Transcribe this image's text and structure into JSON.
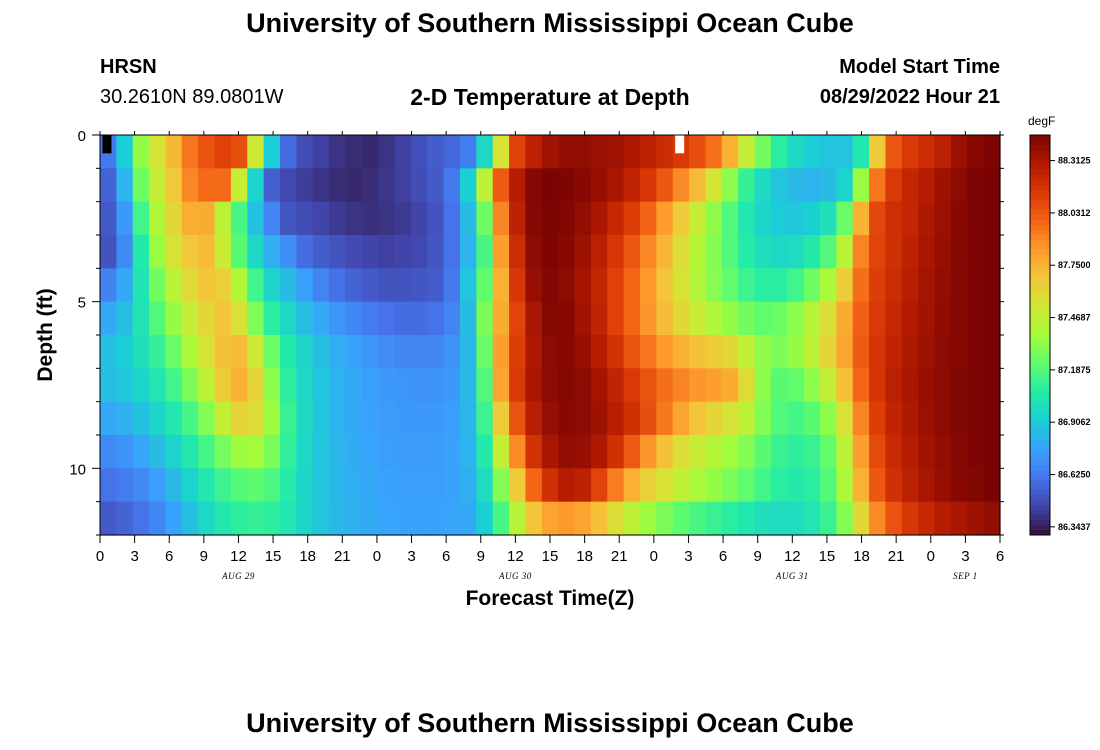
{
  "header": {
    "title": "University of Southern Mississippi Ocean Cube",
    "station_name": "HRSN",
    "station_coords": "30.2610N  89.0801W",
    "chart_subtitle": "2-D Temperature at Depth",
    "model_start_label": "Model Start Time",
    "model_start_value": "08/29/2022 Hour 21"
  },
  "footer": {
    "title_repeat": "University of Southern Mississippi Ocean Cube"
  },
  "colors": {
    "palette": [
      "#30123b",
      "#4145ab",
      "#4675ed",
      "#39a2fc",
      "#1bcfd4",
      "#24eca6",
      "#61fc6c",
      "#a4fc3b",
      "#d1e834",
      "#f3c63a",
      "#fe9b2d",
      "#f36315",
      "#d93806",
      "#b11901",
      "#7a0403"
    ],
    "missing": "#ffffff"
  },
  "chart_data": {
    "type": "heatmap",
    "title": "2-D Temperature at Depth",
    "xlabel": "Forecast Time(Z)",
    "ylabel": "Depth (ft)",
    "x_hours_start": 0,
    "x_hours_end": 78,
    "x_tick_step_hours": 3,
    "x_tick_labels": [
      "0",
      "3",
      "6",
      "9",
      "12",
      "15",
      "18",
      "21",
      "0",
      "3",
      "6",
      "9",
      "12",
      "15",
      "18",
      "21",
      "0",
      "3",
      "6",
      "9",
      "12",
      "15",
      "18",
      "21",
      "0",
      "3",
      "6"
    ],
    "date_labels": [
      {
        "label": "AUG 29",
        "hour": 12
      },
      {
        "label": "AUG 30",
        "hour": 36
      },
      {
        "label": "AUG 31",
        "hour": 60
      },
      {
        "label": "SEP 1",
        "hour": 75
      }
    ],
    "ylim": [
      0,
      12
    ],
    "y_major_ticks": [
      0,
      5,
      10
    ],
    "y_minor_step": 1,
    "depth_levels": [
      0.5,
      1.5,
      2.5,
      3.5,
      4.5,
      5.5,
      6.5,
      7.5,
      8.5,
      9.5,
      10.5,
      11.5
    ],
    "colorbar": {
      "units": "degF",
      "min": 86.3,
      "max": 88.45,
      "tick_values": [
        86.34375,
        86.625,
        86.90625,
        87.1875,
        87.46875,
        87.75,
        88.03125,
        88.3125
      ],
      "tick_labels": [
        "86.3437",
        "86.6250",
        "86.9062",
        "87.1875",
        "87.4687",
        "87.7500",
        "88.0312",
        "88.3125"
      ]
    },
    "series": [
      {
        "name": "0 ft",
        "values": [
          86.62,
          86.91,
          87.34,
          87.55,
          87.73,
          87.94,
          88.05,
          88.11,
          88.06,
          87.52,
          86.91,
          86.58,
          86.48,
          86.44,
          86.4,
          86.38,
          86.37,
          86.4,
          86.44,
          86.49,
          86.53,
          86.57,
          86.64,
          86.96,
          87.55,
          88.11,
          88.25,
          88.34,
          88.38,
          88.38,
          88.36,
          88.34,
          88.3,
          88.25,
          88.2,
          88.14,
          88.06,
          87.95,
          87.76,
          87.49,
          87.26,
          87.08,
          86.97,
          86.91,
          86.88,
          86.88,
          87.04,
          87.66,
          88.03,
          88.14,
          88.2,
          88.26,
          88.36,
          88.41,
          88.44
        ]
      },
      {
        "name": "1 ft",
        "values": [
          86.55,
          86.82,
          87.25,
          87.49,
          87.67,
          87.89,
          87.97,
          87.97,
          87.5,
          86.94,
          86.54,
          86.47,
          86.43,
          86.4,
          86.38,
          86.37,
          86.38,
          86.41,
          86.44,
          86.48,
          86.52,
          86.62,
          86.92,
          87.46,
          88.02,
          88.28,
          88.42,
          88.45,
          88.44,
          88.41,
          88.37,
          88.32,
          88.24,
          88.15,
          88.03,
          87.88,
          87.72,
          87.54,
          87.32,
          87.11,
          86.97,
          86.88,
          86.84,
          86.82,
          86.85,
          86.94,
          87.35,
          87.94,
          88.14,
          88.23,
          88.28,
          88.35,
          88.4,
          88.44,
          88.45
        ]
      },
      {
        "name": "2 ft",
        "values": [
          86.52,
          86.73,
          87.14,
          87.41,
          87.61,
          87.77,
          87.78,
          87.46,
          87.16,
          86.87,
          86.66,
          86.51,
          86.48,
          86.45,
          86.42,
          86.4,
          86.39,
          86.4,
          86.42,
          86.45,
          86.5,
          86.6,
          86.85,
          87.25,
          87.9,
          88.25,
          88.42,
          88.44,
          88.43,
          88.38,
          88.31,
          88.22,
          88.12,
          87.99,
          87.83,
          87.66,
          87.49,
          87.33,
          87.18,
          87.04,
          86.95,
          86.9,
          86.89,
          86.92,
          87.0,
          87.24,
          87.75,
          88.09,
          88.19,
          88.23,
          88.3,
          88.36,
          88.41,
          88.44,
          88.45
        ]
      },
      {
        "name": "3 ft",
        "values": [
          86.5,
          86.68,
          87.05,
          87.35,
          87.55,
          87.67,
          87.72,
          87.5,
          87.2,
          86.96,
          86.8,
          86.7,
          86.58,
          86.53,
          86.5,
          86.47,
          86.45,
          86.44,
          86.45,
          86.47,
          86.51,
          86.6,
          86.82,
          87.16,
          87.82,
          88.2,
          88.4,
          88.44,
          88.41,
          88.35,
          88.26,
          88.15,
          88.03,
          87.89,
          87.74,
          87.58,
          87.43,
          87.3,
          87.18,
          87.06,
          86.99,
          86.96,
          86.98,
          87.05,
          87.18,
          87.45,
          87.9,
          88.1,
          88.18,
          88.25,
          88.32,
          88.37,
          88.42,
          88.44,
          88.45
        ]
      },
      {
        "name": "4 ft",
        "values": [
          86.65,
          86.78,
          87.02,
          87.26,
          87.45,
          87.59,
          87.68,
          87.64,
          87.42,
          87.14,
          86.95,
          86.85,
          86.75,
          86.66,
          86.59,
          86.55,
          86.52,
          86.5,
          86.5,
          86.51,
          86.53,
          86.62,
          86.88,
          87.22,
          87.76,
          88.15,
          88.37,
          88.43,
          88.4,
          88.33,
          88.23,
          88.11,
          87.98,
          87.84,
          87.69,
          87.55,
          87.42,
          87.31,
          87.22,
          87.13,
          87.08,
          87.08,
          87.14,
          87.25,
          87.4,
          87.65,
          87.96,
          88.12,
          88.2,
          88.27,
          88.33,
          88.38,
          88.42,
          88.44,
          88.45
        ]
      },
      {
        "name": "5 ft",
        "values": [
          86.78,
          86.86,
          87.02,
          87.18,
          87.34,
          87.49,
          87.61,
          87.68,
          87.56,
          87.29,
          87.08,
          86.96,
          86.86,
          86.78,
          86.72,
          86.67,
          86.63,
          86.6,
          86.58,
          86.58,
          86.6,
          86.66,
          86.85,
          87.28,
          87.78,
          88.1,
          88.32,
          88.42,
          88.41,
          88.34,
          88.24,
          88.11,
          87.98,
          87.85,
          87.72,
          87.6,
          87.5,
          87.42,
          87.34,
          87.26,
          87.22,
          87.24,
          87.32,
          87.44,
          87.58,
          87.78,
          88.0,
          88.14,
          88.22,
          88.29,
          88.34,
          88.39,
          88.42,
          88.44,
          88.45
        ]
      },
      {
        "name": "6 ft",
        "values": [
          86.87,
          86.91,
          87.0,
          87.11,
          87.24,
          87.39,
          87.55,
          87.7,
          87.72,
          87.52,
          87.24,
          87.05,
          86.94,
          86.86,
          86.8,
          86.76,
          86.72,
          86.69,
          86.67,
          86.66,
          86.67,
          86.71,
          86.84,
          87.24,
          87.82,
          88.12,
          88.3,
          88.4,
          88.41,
          88.37,
          88.28,
          88.17,
          88.05,
          87.94,
          87.84,
          87.76,
          87.7,
          87.65,
          87.6,
          87.47,
          87.33,
          87.28,
          87.34,
          87.46,
          87.62,
          87.8,
          88.02,
          88.16,
          88.24,
          88.3,
          88.35,
          88.4,
          88.42,
          88.44,
          88.45
        ]
      },
      {
        "name": "7 ft",
        "values": [
          86.86,
          86.89,
          86.95,
          87.03,
          87.14,
          87.28,
          87.46,
          87.65,
          87.76,
          87.62,
          87.32,
          87.09,
          86.96,
          86.88,
          86.82,
          86.78,
          86.75,
          86.73,
          86.72,
          86.71,
          86.71,
          86.73,
          86.84,
          87.18,
          87.8,
          88.14,
          88.32,
          88.4,
          88.42,
          88.4,
          88.33,
          88.24,
          88.14,
          88.05,
          87.96,
          87.9,
          87.85,
          87.82,
          87.78,
          87.59,
          87.32,
          87.2,
          87.22,
          87.32,
          87.48,
          87.7,
          87.98,
          88.16,
          88.26,
          88.32,
          88.37,
          88.4,
          88.43,
          88.44,
          88.45
        ]
      },
      {
        "name": "8 ft",
        "values": [
          86.78,
          86.81,
          86.87,
          86.95,
          87.04,
          87.15,
          87.3,
          87.48,
          87.62,
          87.58,
          87.36,
          87.12,
          86.97,
          86.88,
          86.82,
          86.78,
          86.76,
          86.74,
          86.73,
          86.73,
          86.73,
          86.75,
          86.83,
          87.13,
          87.66,
          88.05,
          88.27,
          88.37,
          88.41,
          88.4,
          88.35,
          88.27,
          88.18,
          88.06,
          87.93,
          87.8,
          87.69,
          87.62,
          87.56,
          87.46,
          87.3,
          87.18,
          87.15,
          87.2,
          87.32,
          87.56,
          87.9,
          88.12,
          88.24,
          88.3,
          88.36,
          88.4,
          88.43,
          88.44,
          88.45
        ]
      },
      {
        "name": "9 ft",
        "values": [
          86.68,
          86.71,
          86.77,
          86.85,
          86.94,
          87.04,
          87.15,
          87.27,
          87.36,
          87.38,
          87.28,
          87.1,
          86.96,
          86.88,
          86.83,
          86.79,
          86.77,
          86.75,
          86.74,
          86.74,
          86.74,
          86.76,
          86.82,
          87.05,
          87.48,
          87.88,
          88.17,
          88.32,
          88.38,
          88.37,
          88.3,
          88.18,
          88.02,
          87.85,
          87.7,
          87.58,
          87.5,
          87.43,
          87.37,
          87.3,
          87.2,
          87.12,
          87.09,
          87.12,
          87.22,
          87.46,
          87.82,
          88.08,
          88.21,
          88.28,
          88.34,
          88.38,
          88.42,
          88.44,
          88.45
        ]
      },
      {
        "name": "10 ft",
        "values": [
          86.6,
          86.63,
          86.68,
          86.75,
          86.84,
          86.94,
          87.04,
          87.13,
          87.19,
          87.21,
          87.17,
          87.06,
          86.95,
          86.88,
          86.83,
          86.8,
          86.78,
          86.76,
          86.75,
          86.75,
          86.75,
          86.76,
          86.8,
          86.98,
          87.3,
          87.66,
          87.98,
          88.18,
          88.28,
          88.25,
          88.1,
          87.92,
          87.76,
          87.64,
          87.55,
          87.47,
          87.4,
          87.34,
          87.28,
          87.22,
          87.14,
          87.08,
          87.05,
          87.08,
          87.18,
          87.4,
          87.76,
          88.03,
          88.18,
          88.26,
          88.32,
          88.37,
          88.41,
          88.43,
          88.45
        ]
      },
      {
        "name": "11 ft",
        "values": [
          86.52,
          86.55,
          86.6,
          86.67,
          86.76,
          86.86,
          86.96,
          87.04,
          87.09,
          87.11,
          87.09,
          87.03,
          86.95,
          86.88,
          86.84,
          86.81,
          86.79,
          86.77,
          86.76,
          86.76,
          86.76,
          86.77,
          86.79,
          86.92,
          87.16,
          87.44,
          87.68,
          87.8,
          87.84,
          87.8,
          87.7,
          87.58,
          87.46,
          87.36,
          87.28,
          87.21,
          87.16,
          87.12,
          87.08,
          87.04,
          87.0,
          86.98,
          86.99,
          87.03,
          87.12,
          87.3,
          87.6,
          87.88,
          88.05,
          88.15,
          88.22,
          88.28,
          88.32,
          88.35,
          88.38
        ]
      }
    ],
    "missing_cells": [
      {
        "row": 0,
        "col": 0,
        "color": "#000000"
      },
      {
        "row": 0,
        "col": 35,
        "color": "#ffffff"
      }
    ]
  }
}
